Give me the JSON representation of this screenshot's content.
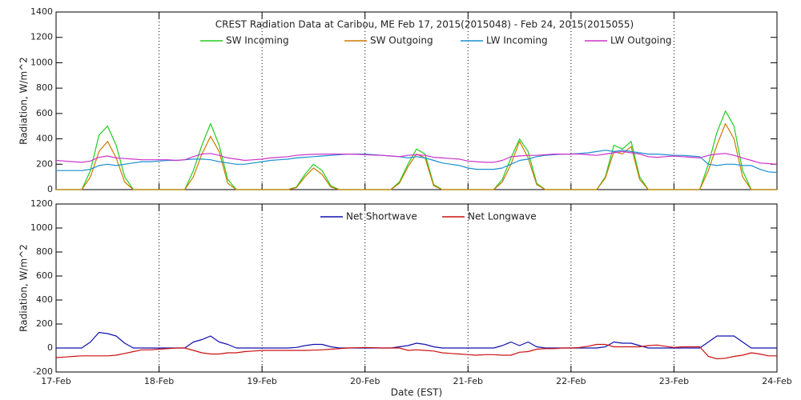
{
  "chart_data": [
    {
      "type": "line",
      "title": "CREST Radiation Data at Caribou, ME   Feb 17, 2015(2015048) - Feb 24, 2015(2015055)",
      "y_label": "Radiation, W/m^2",
      "grid": "x",
      "legend": "top",
      "x": [
        0,
        2,
        4,
        6,
        8,
        10,
        12,
        14,
        16,
        18,
        20,
        22,
        24,
        26,
        28,
        30,
        32,
        34,
        36,
        38,
        40,
        42,
        44,
        46,
        48,
        50,
        52,
        54,
        56,
        58,
        60,
        62,
        64,
        66,
        68,
        70,
        72,
        74,
        76,
        78,
        80,
        82,
        84,
        86,
        88,
        90,
        92,
        94,
        96,
        98,
        100,
        102,
        104,
        106,
        108,
        110,
        112,
        114,
        116,
        118,
        120,
        122,
        124,
        126,
        128,
        130,
        132,
        134,
        136,
        138,
        140,
        142,
        144,
        146,
        148,
        150,
        152,
        154,
        156,
        158,
        160,
        162,
        164,
        166,
        168
      ],
      "xlim": [
        0,
        168
      ],
      "xticks": [
        0,
        24,
        48,
        72,
        96,
        120,
        144,
        168
      ],
      "ylim": [
        0,
        1400
      ],
      "yticks": [
        0,
        200,
        400,
        600,
        800,
        1000,
        1200,
        1400
      ],
      "series": [
        {
          "name": "SW Incoming",
          "color": "#22cc22",
          "values": [
            0,
            0,
            0,
            0,
            150,
            430,
            500,
            350,
            100,
            0,
            0,
            0,
            0,
            0,
            0,
            0,
            150,
            350,
            520,
            350,
            80,
            0,
            0,
            0,
            0,
            0,
            0,
            0,
            20,
            120,
            200,
            150,
            30,
            0,
            0,
            0,
            0,
            0,
            0,
            0,
            60,
            200,
            320,
            280,
            40,
            0,
            0,
            0,
            0,
            0,
            0,
            0,
            80,
            250,
            400,
            300,
            50,
            0,
            0,
            0,
            0,
            0,
            0,
            0,
            100,
            350,
            320,
            380,
            100,
            0,
            0,
            0,
            0,
            0,
            0,
            0,
            200,
            450,
            620,
            500,
            150,
            0,
            0,
            0,
            0
          ]
        },
        {
          "name": "SW Outgoing",
          "color": "#cc7a00",
          "values": [
            0,
            0,
            0,
            0,
            100,
            300,
            380,
            250,
            60,
            0,
            0,
            0,
            0,
            0,
            0,
            0,
            100,
            280,
            420,
            300,
            50,
            0,
            0,
            0,
            0,
            0,
            0,
            0,
            15,
            100,
            170,
            120,
            20,
            0,
            0,
            0,
            0,
            0,
            0,
            0,
            50,
            180,
            280,
            250,
            30,
            0,
            0,
            0,
            0,
            0,
            0,
            0,
            60,
            200,
            380,
            250,
            40,
            0,
            0,
            0,
            0,
            0,
            0,
            0,
            90,
            300,
            280,
            340,
            80,
            0,
            0,
            0,
            0,
            0,
            0,
            0,
            150,
            350,
            520,
            400,
            100,
            0,
            0,
            0,
            0
          ]
        },
        {
          "name": "LW Incoming",
          "color": "#1a8fd0",
          "values": [
            150,
            150,
            150,
            150,
            160,
            190,
            200,
            190,
            200,
            210,
            220,
            220,
            225,
            230,
            230,
            235,
            240,
            240,
            235,
            220,
            210,
            200,
            200,
            210,
            220,
            230,
            235,
            240,
            250,
            255,
            260,
            265,
            270,
            275,
            280,
            280,
            280,
            275,
            270,
            265,
            260,
            250,
            260,
            250,
            230,
            210,
            200,
            190,
            170,
            160,
            160,
            160,
            170,
            200,
            230,
            240,
            260,
            270,
            275,
            280,
            280,
            285,
            290,
            300,
            310,
            300,
            310,
            300,
            290,
            280,
            280,
            275,
            270,
            270,
            265,
            260,
            200,
            190,
            200,
            200,
            190,
            190,
            160,
            140,
            135
          ]
        },
        {
          "name": "LW Outgoing",
          "color": "#cc33cc",
          "values": [
            230,
            225,
            220,
            215,
            225,
            255,
            265,
            250,
            245,
            240,
            235,
            235,
            235,
            235,
            230,
            235,
            260,
            280,
            285,
            270,
            250,
            240,
            230,
            235,
            240,
            250,
            255,
            260,
            270,
            275,
            278,
            280,
            280,
            280,
            280,
            278,
            275,
            272,
            270,
            265,
            260,
            270,
            275,
            270,
            255,
            250,
            245,
            240,
            225,
            220,
            215,
            215,
            230,
            260,
            265,
            270,
            270,
            275,
            280,
            280,
            280,
            280,
            275,
            270,
            280,
            290,
            300,
            290,
            280,
            260,
            255,
            260,
            265,
            260,
            255,
            250,
            270,
            280,
            285,
            270,
            250,
            230,
            210,
            205,
            200
          ]
        }
      ]
    },
    {
      "type": "line",
      "y_label": "Radiation, W/m^2",
      "x_label": "Date (EST)",
      "grid": "x",
      "legend": "top",
      "x": [
        0,
        2,
        4,
        6,
        8,
        10,
        12,
        14,
        16,
        18,
        20,
        22,
        24,
        26,
        28,
        30,
        32,
        34,
        36,
        38,
        40,
        42,
        44,
        46,
        48,
        50,
        52,
        54,
        56,
        58,
        60,
        62,
        64,
        66,
        68,
        70,
        72,
        74,
        76,
        78,
        80,
        82,
        84,
        86,
        88,
        90,
        92,
        94,
        96,
        98,
        100,
        102,
        104,
        106,
        108,
        110,
        112,
        114,
        116,
        118,
        120,
        122,
        124,
        126,
        128,
        130,
        132,
        134,
        136,
        138,
        140,
        142,
        144,
        146,
        148,
        150,
        152,
        154,
        156,
        158,
        160,
        162,
        164,
        166,
        168
      ],
      "xlim": [
        0,
        168
      ],
      "xticks": [
        {
          "value": 0,
          "label": "17-Feb"
        },
        {
          "value": 24,
          "label": "18-Feb"
        },
        {
          "value": 48,
          "label": "19-Feb"
        },
        {
          "value": 72,
          "label": "20-Feb"
        },
        {
          "value": 96,
          "label": "21-Feb"
        },
        {
          "value": 120,
          "label": "22-Feb"
        },
        {
          "value": 144,
          "label": "23-Feb"
        },
        {
          "value": 168,
          "label": "24-Feb"
        }
      ],
      "ylim": [
        -200,
        1200
      ],
      "yticks": [
        -200,
        0,
        200,
        400,
        600,
        800,
        1000,
        1200
      ],
      "series": [
        {
          "name": "Net Shortwave",
          "color": "#1010b0",
          "values": [
            0,
            0,
            0,
            0,
            50,
            130,
            120,
            100,
            40,
            0,
            0,
            0,
            0,
            0,
            0,
            0,
            50,
            70,
            100,
            50,
            30,
            0,
            0,
            0,
            0,
            0,
            0,
            0,
            5,
            20,
            30,
            30,
            10,
            0,
            0,
            0,
            0,
            0,
            0,
            0,
            10,
            20,
            40,
            30,
            10,
            0,
            0,
            0,
            0,
            0,
            0,
            0,
            20,
            50,
            20,
            50,
            10,
            0,
            0,
            0,
            0,
            0,
            0,
            0,
            10,
            50,
            40,
            40,
            20,
            0,
            0,
            0,
            0,
            0,
            0,
            0,
            50,
            100,
            100,
            100,
            50,
            0,
            0,
            0,
            0
          ]
        },
        {
          "name": "Net Longwave",
          "color": "#cc1010",
          "values": [
            -80,
            -75,
            -70,
            -65,
            -65,
            -65,
            -65,
            -60,
            -45,
            -30,
            -15,
            -15,
            -10,
            -5,
            0,
            0,
            -20,
            -40,
            -50,
            -50,
            -40,
            -40,
            -30,
            -25,
            -20,
            -20,
            -20,
            -20,
            -20,
            -20,
            -18,
            -15,
            -10,
            -5,
            0,
            2,
            5,
            3,
            0,
            0,
            0,
            -20,
            -15,
            -20,
            -25,
            -40,
            -45,
            -50,
            -55,
            -60,
            -55,
            -55,
            -60,
            -60,
            -35,
            -30,
            -10,
            -5,
            -5,
            0,
            0,
            5,
            15,
            30,
            30,
            10,
            10,
            10,
            10,
            20,
            25,
            15,
            5,
            10,
            10,
            10,
            -70,
            -90,
            -85,
            -70,
            -60,
            -40,
            -50,
            -65,
            -65
          ]
        }
      ]
    }
  ]
}
